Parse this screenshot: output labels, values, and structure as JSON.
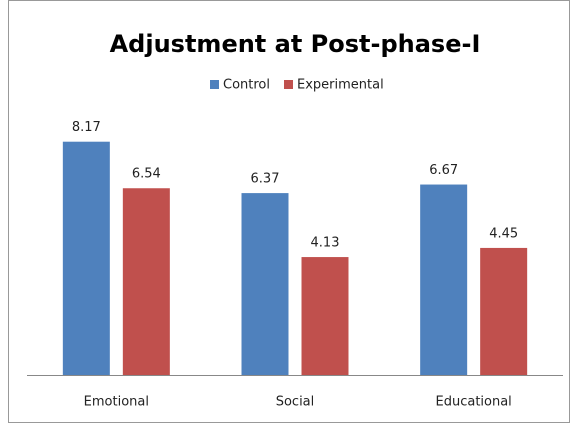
{
  "chart_data": {
    "type": "bar",
    "title": "Adjustment at Post-phase-I",
    "categories": [
      "Emotional",
      "Social",
      "Educational"
    ],
    "series": [
      {
        "name": "Control",
        "color": "#4f81bd",
        "values": [
          8.17,
          6.37,
          6.67
        ]
      },
      {
        "name": "Experimental",
        "color": "#c0504d",
        "values": [
          6.54,
          4.13,
          4.45
        ]
      }
    ],
    "ylim": [
      0,
      9
    ],
    "legend": "top"
  }
}
